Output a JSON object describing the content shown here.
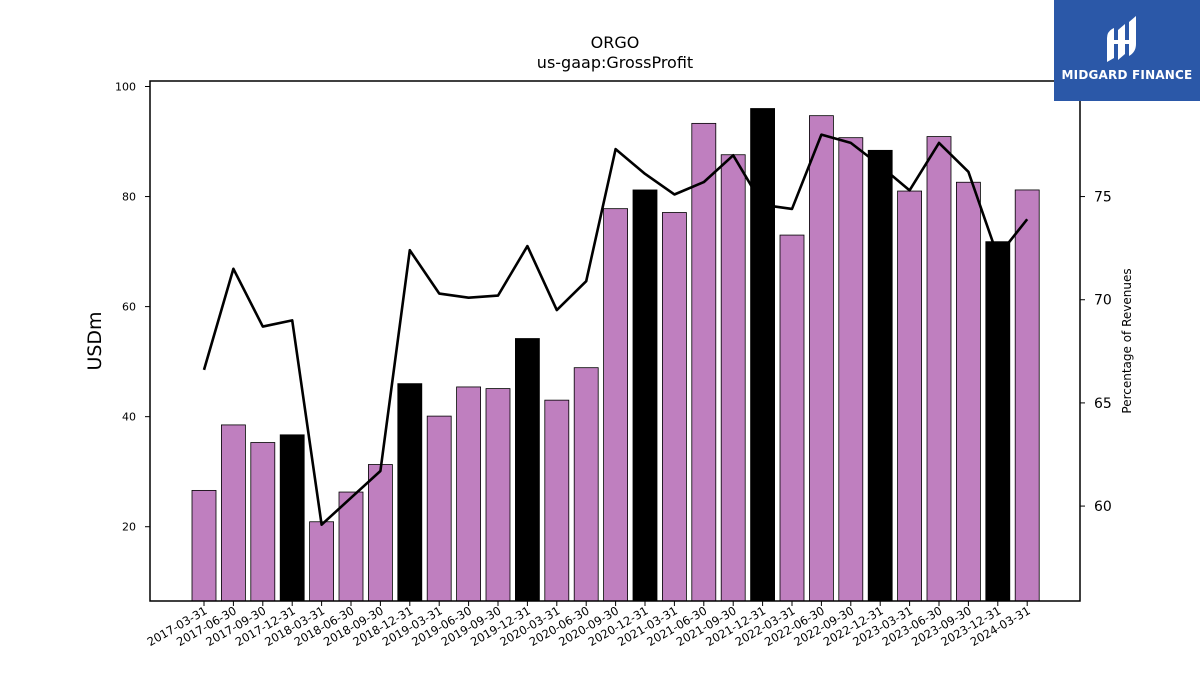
{
  "chart_data": {
    "type": "bar",
    "title": "ORGO",
    "subtitle": "us-gaap:GrossProfit",
    "ylabel": "USDm",
    "y2label": "Percentage of Revenues",
    "ylim": [
      6.5,
      101
    ],
    "y2lim": [
      55.4,
      80.6
    ],
    "yticks": [
      20,
      40,
      60,
      80,
      100
    ],
    "y2ticks": [
      60,
      65,
      70,
      75
    ],
    "categories": [
      "2017-03-31",
      "2017-06-30",
      "2017-09-30",
      "2017-12-31",
      "2018-03-31",
      "2018-06-30",
      "2018-09-30",
      "2018-12-31",
      "2019-03-31",
      "2019-06-30",
      "2019-09-30",
      "2019-12-31",
      "2020-03-31",
      "2020-06-30",
      "2020-09-30",
      "2020-12-31",
      "2021-03-31",
      "2021-06-30",
      "2021-09-30",
      "2021-12-31",
      "2022-03-31",
      "2022-06-30",
      "2022-09-30",
      "2022-12-31",
      "2023-03-31",
      "2023-06-30",
      "2023-09-30",
      "2023-12-31",
      "2024-03-31"
    ],
    "series": [
      {
        "type": "bar",
        "axis": "left",
        "values": [
          26.6,
          38.5,
          35.3,
          36.7,
          20.9,
          26.3,
          31.3,
          46.0,
          40.1,
          45.4,
          45.1,
          54.2,
          43.0,
          48.9,
          77.8,
          81.2,
          77.1,
          93.3,
          87.6,
          96.0,
          73.0,
          94.7,
          90.7,
          88.4,
          81.0,
          90.9,
          82.6,
          71.8,
          81.2
        ],
        "colors": [
          "#bf7fbf",
          "#bf7fbf",
          "#bf7fbf",
          "#000000",
          "#bf7fbf",
          "#bf7fbf",
          "#bf7fbf",
          "#000000",
          "#bf7fbf",
          "#bf7fbf",
          "#bf7fbf",
          "#000000",
          "#bf7fbf",
          "#bf7fbf",
          "#bf7fbf",
          "#000000",
          "#bf7fbf",
          "#bf7fbf",
          "#bf7fbf",
          "#000000",
          "#bf7fbf",
          "#bf7fbf",
          "#bf7fbf",
          "#000000",
          "#bf7fbf",
          "#bf7fbf",
          "#bf7fbf",
          "#000000",
          "#bf7fbf"
        ]
      },
      {
        "type": "line",
        "axis": "right",
        "color": "#000000",
        "values": [
          66.6,
          71.5,
          68.7,
          69.0,
          59.1,
          60.4,
          61.7,
          72.4,
          70.3,
          70.1,
          70.2,
          72.6,
          69.5,
          70.9,
          77.3,
          76.1,
          75.1,
          75.7,
          77.0,
          74.6,
          74.4,
          78.0,
          77.6,
          76.5,
          75.3,
          77.6,
          76.2,
          72.1,
          73.9
        ]
      }
    ],
    "grid": false,
    "legend": "none"
  },
  "colors": {
    "accent": "#bf7fbf",
    "highlight": "#000000",
    "logo_bg": "#2b58a8"
  },
  "logo": {
    "text": "MIDGARD FINANCE",
    "icon": "midgard-logo-icon"
  }
}
